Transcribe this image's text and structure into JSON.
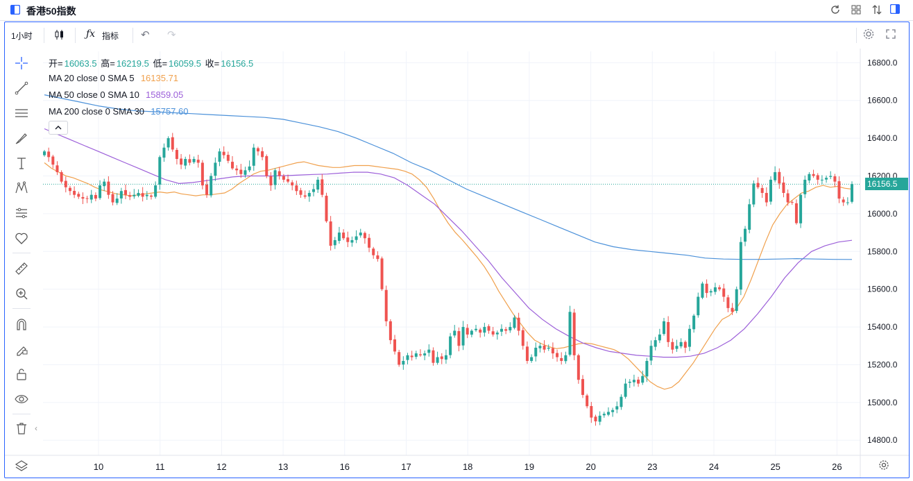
{
  "window": {
    "title": "香港50指数"
  },
  "toolbar": {
    "interval": "1小时",
    "indicators_label": "指标"
  },
  "legend": {
    "ohlc": {
      "open_label": "开=",
      "open": "16063.5",
      "high_label": "高=",
      "high": "16219.5",
      "low_label": "低=",
      "low": "16059.5",
      "close_label": "收=",
      "close": "16156.5"
    },
    "ma": [
      {
        "label": "MA 20 close 0 SMA 5",
        "value": "16135.71",
        "color": "#f0a04c"
      },
      {
        "label": "MA 50 close 0 SMA 10",
        "value": "15859.05",
        "color": "#9c5fd9"
      },
      {
        "label": "MA 200 close 0 SMA 30",
        "value": "15757.60",
        "color": "#4a90d9"
      }
    ]
  },
  "colors": {
    "up": "#26a69a",
    "down": "#ef5350",
    "accent": "#2962ff"
  },
  "icons": [
    "panel-left-icon",
    "refresh-icon",
    "grid-icon",
    "compare-icon",
    "panel-right-icon",
    "candles-icon",
    "function-icon",
    "undo-icon",
    "redo-icon",
    "settings-icon",
    "fullscreen-icon",
    "crosshair-icon",
    "trendline-icon",
    "horizontal-lines-icon",
    "brush-icon",
    "text-icon",
    "pattern-icon",
    "forecast-icon",
    "heart-icon",
    "ruler-icon",
    "zoom-icon",
    "magnet-icon",
    "lock-drawings-icon",
    "unlock-icon",
    "eye-icon",
    "trash-icon",
    "layers-icon",
    "gear-icon"
  ],
  "chart_data": {
    "type": "candlestick",
    "current_price_label": "16156.5",
    "y_ticks": [
      "16800.0",
      "16600.0",
      "16400.0",
      "16200.0",
      "16000.0",
      "15800.0",
      "15600.0",
      "15400.0",
      "15200.0",
      "15000.0",
      "14800.0"
    ],
    "x_ticks": [
      "10",
      "11",
      "12",
      "13",
      "16",
      "17",
      "18",
      "19",
      "20",
      "23",
      "24",
      "25",
      "26"
    ],
    "ylim": [
      14720,
      16860
    ],
    "grid": true,
    "price_closes": [
      16330,
      16300,
      16260,
      16220,
      16170,
      16140,
      16120,
      16100,
      16090,
      16080,
      16080,
      16100,
      16080,
      16150,
      16170,
      16100,
      16060,
      16080,
      16120,
      16100,
      16090,
      16100,
      16110,
      16090,
      16100,
      16090,
      16150,
      16300,
      16350,
      16400,
      16340,
      16290,
      16260,
      16290,
      16270,
      16290,
      16270,
      16150,
      16100,
      16200,
      16270,
      16330,
      16310,
      16280,
      16240,
      16230,
      16210,
      16230,
      16250,
      16350,
      16330,
      16300,
      16200,
      16150,
      16230,
      16200,
      16180,
      16170,
      16150,
      16120,
      16100,
      16090,
      16110,
      16130,
      16180,
      16100,
      15960,
      15830,
      15860,
      15900,
      15870,
      15850,
      15860,
      15880,
      15900,
      15870,
      15820,
      15780,
      15760,
      15600,
      15430,
      15330,
      15270,
      15200,
      15220,
      15250,
      15240,
      15260,
      15250,
      15260,
      15280,
      15210,
      15240,
      15230,
      15250,
      15350,
      15380,
      15300,
      15400,
      15360,
      15380,
      15390,
      15370,
      15400,
      15380,
      15360,
      15370,
      15390,
      15380,
      15400,
      15450,
      15380,
      15300,
      15220,
      15240,
      15290,
      15300,
      15280,
      15290,
      15260,
      15240,
      15220,
      15250,
      15480,
      15250,
      15120,
      15040,
      14980,
      14920,
      14900,
      14930,
      14940,
      14950,
      14960,
      14980,
      15030,
      15100,
      15110,
      15120,
      15100,
      15140,
      15220,
      15300,
      15330,
      15360,
      15430,
      15320,
      15280,
      15300,
      15320,
      15290,
      15390,
      15460,
      15560,
      15630,
      15580,
      15590,
      15610,
      15600,
      15560,
      15500,
      15480,
      15600,
      15850,
      15920,
      16050,
      16160,
      16140,
      16110,
      16060,
      16180,
      16220,
      16160,
      16110,
      16060,
      16060,
      15950,
      16100,
      16180,
      16210,
      16200,
      16180,
      16180,
      16190,
      16200,
      16170,
      16080,
      16060,
      16060,
      16156.5
    ],
    "series": [
      {
        "name": "MA 20 close 0 SMA 5",
        "values": [
          16270,
          16240,
          16220,
          16200,
          16190,
          16175,
          16160,
          16140,
          16125,
          16115,
          16105,
          16100,
          16095,
          16100,
          16105,
          16110,
          16115,
          16110,
          16115,
          16105,
          16100,
          16095,
          16100,
          16100,
          16105,
          16110,
          16130,
          16160,
          16185,
          16210,
          16225,
          16230,
          16240,
          16250,
          16260,
          16270,
          16275,
          16265,
          16255,
          16250,
          16245,
          16245,
          16250,
          16255,
          16255,
          16255,
          16250,
          16245,
          16240,
          16235,
          16225,
          16210,
          16180,
          16140,
          16080,
          16010,
          15950,
          15900,
          15860,
          15815,
          15770,
          15720,
          15660,
          15590,
          15530,
          15470,
          15420,
          15370,
          15330,
          15310,
          15295,
          15285,
          15290,
          15300,
          15310,
          15315,
          15310,
          15300,
          15290,
          15280,
          15260,
          15230,
          15190,
          15150,
          15110,
          15085,
          15070,
          15080,
          15110,
          15160,
          15210,
          15270,
          15330,
          15390,
          15440,
          15460,
          15500,
          15560,
          15650,
          15750,
          15850,
          15940,
          16000,
          16050,
          16080,
          16110,
          16120,
          16140,
          16150,
          16140,
          16145,
          16135,
          16130
        ]
      },
      {
        "name": "MA 50 close 0 SMA 10",
        "values": [
          16450,
          16420,
          16390,
          16360,
          16330,
          16300,
          16270,
          16240,
          16210,
          16180,
          16160,
          16165,
          16175,
          16185,
          16195,
          16200,
          16200,
          16200,
          16202,
          16205,
          16208,
          16210,
          16215,
          16220,
          16220,
          16210,
          16190,
          16150,
          16100,
          16050,
          15980,
          15910,
          15830,
          15750,
          15660,
          15580,
          15500,
          15440,
          15390,
          15350,
          15315,
          15290,
          15270,
          15260,
          15250,
          15245,
          15240,
          15240,
          15245,
          15260,
          15290,
          15330,
          15390,
          15470,
          15560,
          15660,
          15740,
          15800,
          15830,
          15850,
          15859
        ]
      },
      {
        "name": "MA 200 close 0 SMA 30",
        "values": [
          16630,
          16610,
          16590,
          16570,
          16555,
          16545,
          16540,
          16535,
          16530,
          16525,
          16520,
          16515,
          16510,
          16500,
          16480,
          16460,
          16435,
          16400,
          16360,
          16320,
          16270,
          16230,
          16180,
          16130,
          16090,
          16050,
          16010,
          15970,
          15930,
          15890,
          15850,
          15825,
          15810,
          15800,
          15790,
          15780,
          15765,
          15760,
          15758,
          15758,
          15760,
          15762,
          15760,
          15758,
          15757.6
        ]
      }
    ]
  }
}
